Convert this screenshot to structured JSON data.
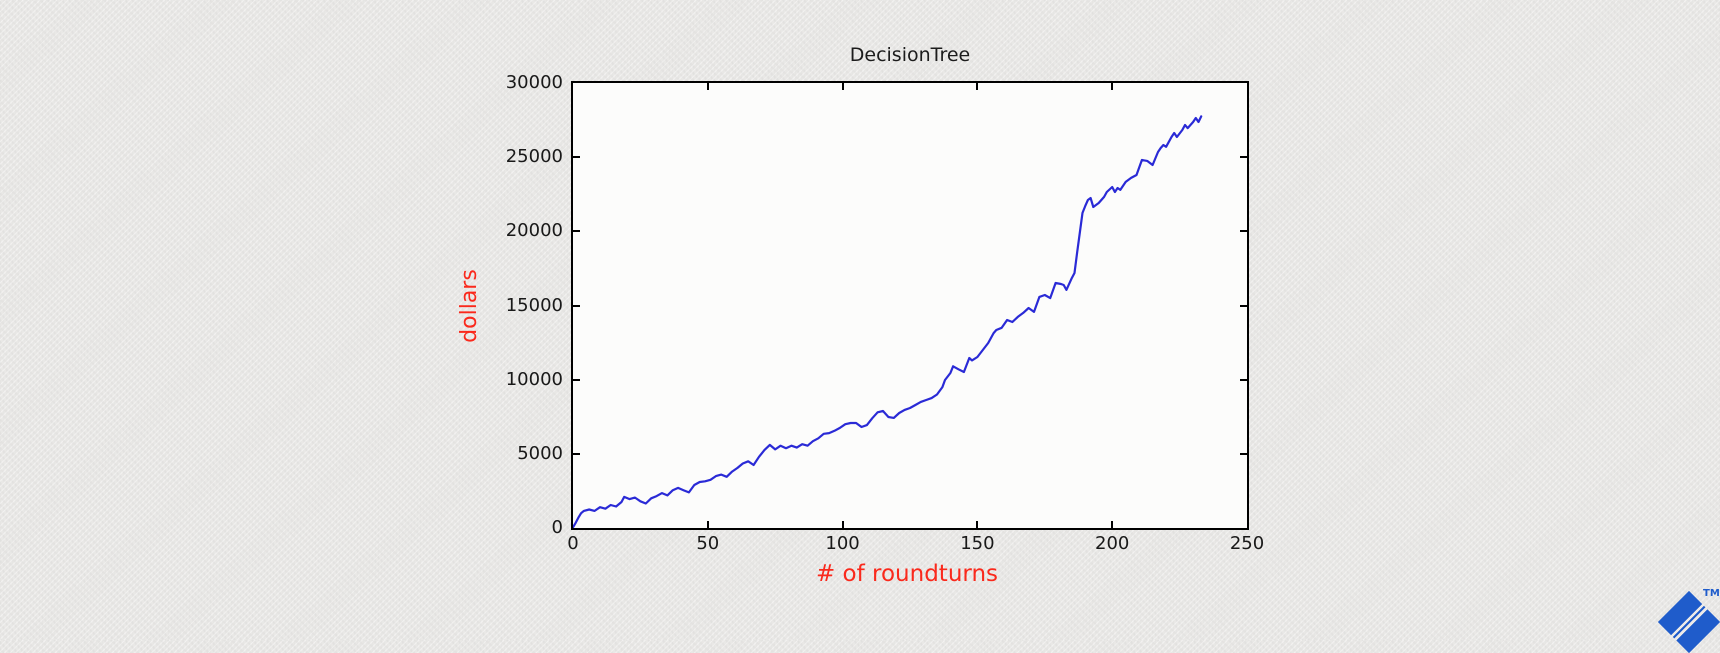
{
  "page": {
    "background_color": "#e9e8e6"
  },
  "chart_data": {
    "type": "line",
    "title": "DecisionTree",
    "xlabel": "# of roundturns",
    "ylabel": "dollars",
    "xlim": [
      0,
      250
    ],
    "ylim": [
      0,
      30000
    ],
    "xticks": [
      0,
      50,
      100,
      150,
      200,
      250
    ],
    "yticks": [
      0,
      5000,
      10000,
      15000,
      20000,
      25000,
      30000
    ],
    "grid": false,
    "legend": false,
    "title_color": "#1c1c1c",
    "axis_label_color": "#fa291c",
    "line_color": "#2a2ad6",
    "series": [
      {
        "color": "#2a2ad6",
        "points": [
          [
            0,
            50
          ],
          [
            1,
            350
          ],
          [
            2,
            700
          ],
          [
            3,
            1000
          ],
          [
            4,
            1150
          ],
          [
            6,
            1250
          ],
          [
            8,
            1150
          ],
          [
            10,
            1400
          ],
          [
            12,
            1300
          ],
          [
            14,
            1550
          ],
          [
            16,
            1450
          ],
          [
            18,
            1750
          ],
          [
            19,
            2100
          ],
          [
            21,
            1950
          ],
          [
            23,
            2050
          ],
          [
            25,
            1800
          ],
          [
            27,
            1650
          ],
          [
            29,
            2000
          ],
          [
            31,
            2150
          ],
          [
            33,
            2350
          ],
          [
            35,
            2200
          ],
          [
            37,
            2550
          ],
          [
            39,
            2700
          ],
          [
            41,
            2550
          ],
          [
            43,
            2400
          ],
          [
            45,
            2900
          ],
          [
            47,
            3100
          ],
          [
            49,
            3150
          ],
          [
            51,
            3250
          ],
          [
            53,
            3500
          ],
          [
            55,
            3600
          ],
          [
            57,
            3450
          ],
          [
            59,
            3800
          ],
          [
            61,
            4050
          ],
          [
            63,
            4350
          ],
          [
            65,
            4500
          ],
          [
            67,
            4250
          ],
          [
            69,
            4800
          ],
          [
            71,
            5250
          ],
          [
            73,
            5600
          ],
          [
            75,
            5300
          ],
          [
            77,
            5550
          ],
          [
            79,
            5380
          ],
          [
            81,
            5550
          ],
          [
            83,
            5420
          ],
          [
            85,
            5650
          ],
          [
            87,
            5550
          ],
          [
            89,
            5850
          ],
          [
            91,
            6050
          ],
          [
            93,
            6350
          ],
          [
            95,
            6400
          ],
          [
            97,
            6550
          ],
          [
            99,
            6750
          ],
          [
            101,
            7000
          ],
          [
            103,
            7080
          ],
          [
            105,
            7080
          ],
          [
            107,
            6810
          ],
          [
            109,
            6940
          ],
          [
            111,
            7400
          ],
          [
            113,
            7800
          ],
          [
            115,
            7890
          ],
          [
            117,
            7480
          ],
          [
            119,
            7420
          ],
          [
            121,
            7750
          ],
          [
            123,
            7960
          ],
          [
            125,
            8090
          ],
          [
            127,
            8290
          ],
          [
            129,
            8500
          ],
          [
            131,
            8630
          ],
          [
            133,
            8760
          ],
          [
            135,
            9000
          ],
          [
            137,
            9500
          ],
          [
            138,
            9980
          ],
          [
            140,
            10450
          ],
          [
            141,
            10900
          ],
          [
            143,
            10700
          ],
          [
            145,
            10520
          ],
          [
            147,
            11460
          ],
          [
            148,
            11300
          ],
          [
            150,
            11530
          ],
          [
            152,
            12000
          ],
          [
            154,
            12470
          ],
          [
            156,
            13140
          ],
          [
            157,
            13350
          ],
          [
            159,
            13500
          ],
          [
            161,
            14020
          ],
          [
            163,
            13890
          ],
          [
            165,
            14230
          ],
          [
            167,
            14500
          ],
          [
            169,
            14830
          ],
          [
            171,
            14570
          ],
          [
            173,
            15580
          ],
          [
            175,
            15710
          ],
          [
            177,
            15500
          ],
          [
            179,
            16520
          ],
          [
            181,
            16450
          ],
          [
            182,
            16380
          ],
          [
            183,
            16050
          ],
          [
            185,
            16850
          ],
          [
            186,
            17190
          ],
          [
            187,
            18610
          ],
          [
            188,
            19900
          ],
          [
            189,
            21240
          ],
          [
            190,
            21700
          ],
          [
            191,
            22110
          ],
          [
            192,
            22250
          ],
          [
            193,
            21640
          ],
          [
            195,
            21910
          ],
          [
            197,
            22320
          ],
          [
            198,
            22650
          ],
          [
            200,
            22990
          ],
          [
            201,
            22650
          ],
          [
            202,
            22920
          ],
          [
            203,
            22790
          ],
          [
            205,
            23330
          ],
          [
            207,
            23600
          ],
          [
            209,
            23800
          ],
          [
            211,
            24810
          ],
          [
            213,
            24750
          ],
          [
            215,
            24470
          ],
          [
            217,
            25350
          ],
          [
            218,
            25620
          ],
          [
            219,
            25820
          ],
          [
            220,
            25700
          ],
          [
            222,
            26360
          ],
          [
            223,
            26630
          ],
          [
            224,
            26360
          ],
          [
            226,
            26830
          ],
          [
            227,
            27170
          ],
          [
            228,
            26960
          ],
          [
            230,
            27370
          ],
          [
            231,
            27640
          ],
          [
            232,
            27370
          ],
          [
            233,
            27750
          ]
        ]
      }
    ]
  },
  "branding": {
    "logo": "toptal-logo",
    "trademark": "TM",
    "logo_color": "#1f5ccb"
  }
}
